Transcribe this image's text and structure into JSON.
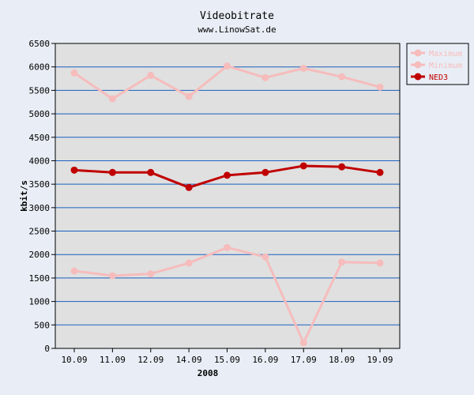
{
  "chart_data": {
    "type": "line",
    "title": "Videobitrate",
    "subtitle": "www.LinowSat.de",
    "xlabel": "2008",
    "ylabel": "kbit/s",
    "categories": [
      "10.09",
      "11.09",
      "12.09",
      "14.09",
      "15.09",
      "16.09",
      "17.09",
      "18.09",
      "19.09"
    ],
    "ylim": [
      0,
      6500
    ],
    "yticks": [
      0,
      500,
      1000,
      1500,
      2000,
      2500,
      3000,
      3500,
      4000,
      4500,
      5000,
      5500,
      6000,
      6500
    ],
    "grid": true,
    "legend_position": "top-right",
    "plot_background": "#e0e0e0",
    "grid_color": "#1b5fbf",
    "series": [
      {
        "name": "Maximum",
        "color": "#f6bcbc",
        "values": [
          5870,
          5320,
          5820,
          5370,
          6020,
          5770,
          5970,
          5790,
          5570
        ]
      },
      {
        "name": "Minimum",
        "color": "#f6bcbc",
        "values": [
          1650,
          1550,
          1590,
          1820,
          2150,
          1950,
          120,
          1840,
          1820
        ]
      },
      {
        "name": "NED3",
        "color": "#c00000",
        "values": [
          3800,
          3750,
          3750,
          3430,
          3690,
          3750,
          3890,
          3870,
          3750
        ]
      }
    ]
  }
}
